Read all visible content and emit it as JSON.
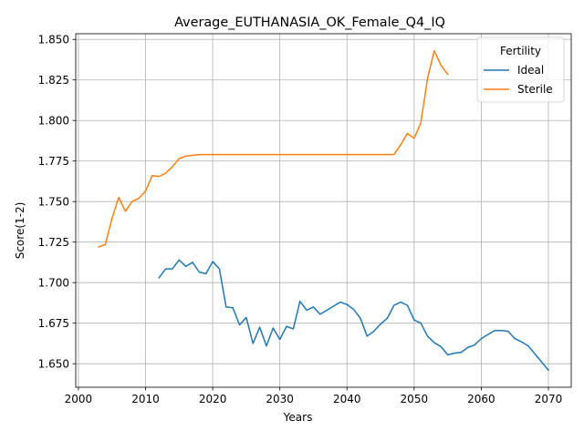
{
  "chart_data": {
    "type": "line",
    "title": "Average_EUTHANASIA_OK_Female_Q4_IQ",
    "xlabel": "Years",
    "ylabel": "Score(1-2)",
    "xlim": [
      1999.6,
      2073.4
    ],
    "ylim": [
      1.6355,
      1.8535
    ],
    "xticks": [
      2000,
      2010,
      2020,
      2030,
      2040,
      2050,
      2060,
      2070
    ],
    "yticks": [
      1.65,
      1.675,
      1.7,
      1.725,
      1.75,
      1.775,
      1.8,
      1.825,
      1.85
    ],
    "ytick_labels": [
      "1.650",
      "1.675",
      "1.700",
      "1.725",
      "1.750",
      "1.775",
      "1.800",
      "1.825",
      "1.850"
    ],
    "grid": true,
    "legend": {
      "title": "Fertility",
      "placement": "top-right"
    },
    "series": [
      {
        "name": "Ideal",
        "color": "#1f77b4",
        "x": [
          2012,
          2013,
          2014,
          2015,
          2016,
          2017,
          2018,
          2019,
          2020,
          2021,
          2022,
          2023,
          2024,
          2025,
          2026,
          2027,
          2028,
          2029,
          2030,
          2031,
          2032,
          2033,
          2034,
          2035,
          2036,
          2037,
          2038,
          2039,
          2040,
          2041,
          2042,
          2043,
          2044,
          2045,
          2046,
          2047,
          2048,
          2049,
          2050,
          2051,
          2052,
          2053,
          2054,
          2055,
          2056,
          2057,
          2058,
          2059,
          2060,
          2061,
          2062,
          2063,
          2064,
          2065,
          2066,
          2067,
          2068,
          2069,
          2070
        ],
        "y": [
          1.703,
          1.7085,
          1.7085,
          1.714,
          1.71,
          1.7125,
          1.7065,
          1.7055,
          1.713,
          1.7085,
          1.685,
          1.6845,
          1.674,
          1.6785,
          1.6625,
          1.6725,
          1.661,
          1.672,
          1.665,
          1.673,
          1.6715,
          1.6885,
          1.683,
          1.685,
          1.6805,
          1.683,
          1.6855,
          1.688,
          1.6865,
          1.6835,
          1.678,
          1.667,
          1.67,
          1.6745,
          1.678,
          1.686,
          1.688,
          1.686,
          1.677,
          1.675,
          1.667,
          1.663,
          1.6605,
          1.6555,
          1.6565,
          1.657,
          1.66,
          1.6615,
          1.6655,
          1.668,
          1.6705,
          1.6705,
          1.67,
          1.6655,
          1.6635,
          1.661,
          1.656,
          1.651,
          1.646
        ]
      },
      {
        "name": "Sterile",
        "color": "#ff7f0e",
        "x": [
          2003,
          2004,
          2005,
          2006,
          2007,
          2008,
          2009,
          2010,
          2011,
          2012,
          2013,
          2014,
          2015,
          2016,
          2017,
          2018,
          2019,
          2020,
          2021,
          2022,
          2023,
          2024,
          2025,
          2026,
          2027,
          2028,
          2029,
          2030,
          2031,
          2032,
          2033,
          2034,
          2035,
          2036,
          2037,
          2038,
          2039,
          2040,
          2041,
          2042,
          2043,
          2044,
          2045,
          2046,
          2047,
          2048,
          2049,
          2050,
          2051,
          2052,
          2053,
          2054,
          2055
        ],
        "y": [
          1.722,
          1.7235,
          1.7395,
          1.7525,
          1.744,
          1.75,
          1.752,
          1.7565,
          1.766,
          1.7655,
          1.7675,
          1.7715,
          1.7765,
          1.778,
          1.7785,
          1.779,
          1.779,
          1.779,
          1.779,
          1.779,
          1.779,
          1.779,
          1.779,
          1.779,
          1.779,
          1.779,
          1.779,
          1.779,
          1.779,
          1.779,
          1.779,
          1.779,
          1.779,
          1.779,
          1.779,
          1.779,
          1.779,
          1.779,
          1.779,
          1.779,
          1.779,
          1.779,
          1.779,
          1.779,
          1.779,
          1.785,
          1.792,
          1.789,
          1.7985,
          1.826,
          1.843,
          1.834,
          1.8285
        ]
      }
    ]
  }
}
